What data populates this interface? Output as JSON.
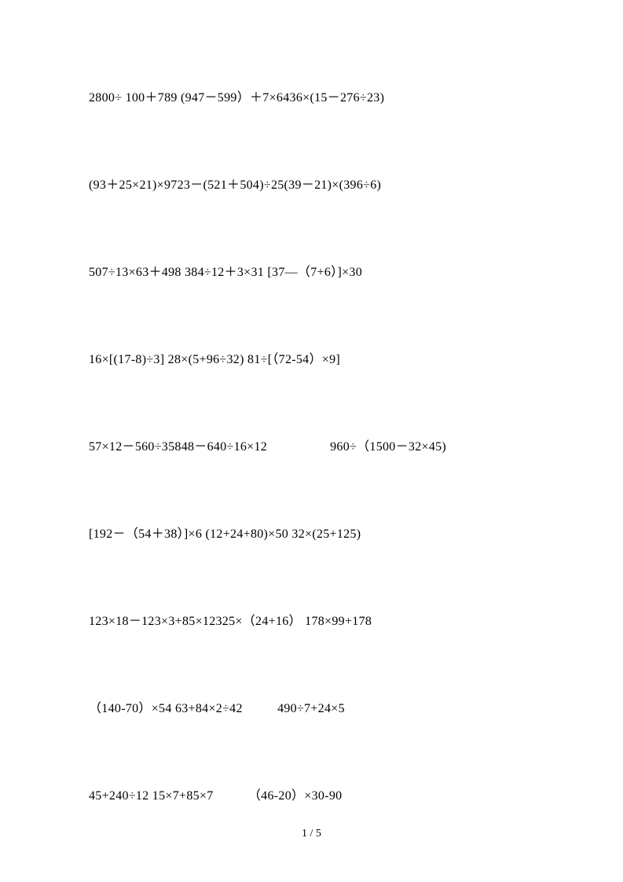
{
  "document": {
    "background_color": "#ffffff",
    "text_color": "#000000",
    "font_family": "Times New Roman, serif",
    "font_size": 16,
    "page_number": "1 / 5",
    "lines": [
      {
        "segments": [
          "2800÷ 100＋789    (947－599）＋7×6436×(15－276÷23)"
        ]
      },
      {
        "segments": [
          "(93＋25×21)×9723－(521＋504)÷25(39－21)×(396÷6)"
        ]
      },
      {
        "segments": [
          "507÷13×63＋498 384÷12＋3×31 [37—（7+6）]×30"
        ]
      },
      {
        "segments": [
          "16×[(17-8)÷3] 28×(5+96÷32) 81÷[（72-54）×9]"
        ]
      },
      {
        "segments": [
          "57×12－560÷35848－640÷16×12",
          "GAP_LG",
          "960÷（1500－32×45)"
        ]
      },
      {
        "segments": [
          "[192－（54＋38）]×6 (12+24+80)×50 32×(25+125)"
        ]
      },
      {
        "segments": [
          "123×18－123×3+85×12325×（24+16）  178×99+178"
        ]
      },
      {
        "segments": [
          " （140-70）×54     63+84×2÷42",
          "GAP_MD",
          "   490÷7+24×5"
        ]
      },
      {
        "segments": [
          "45+240÷12        15×7+85×7",
          "GAP_MD",
          " （46-20）×30-90"
        ]
      }
    ]
  }
}
